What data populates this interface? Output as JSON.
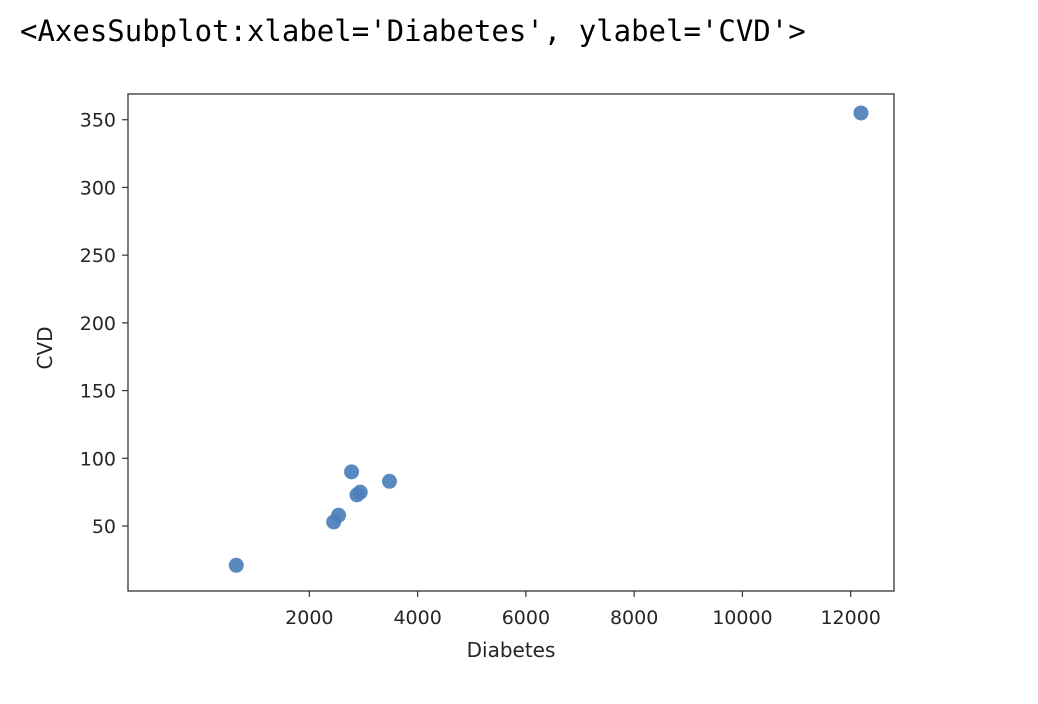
{
  "output_text": "<AxesSubplot:xlabel='Diabetes', ylabel='CVD'>",
  "chart_data": {
    "type": "scatter",
    "title": "",
    "xlabel": "Diabetes",
    "ylabel": "CVD",
    "xlim": [
      -1350,
      12800
    ],
    "ylim": [
      2,
      369
    ],
    "xticks": [
      2000,
      4000,
      6000,
      8000,
      10000,
      12000
    ],
    "xtick_labels": [
      "2000",
      "4000",
      "6000",
      "8000",
      "10000",
      "12000"
    ],
    "yticks": [
      50,
      100,
      150,
      200,
      250,
      300,
      350
    ],
    "ytick_labels": [
      "50",
      "100",
      "150",
      "200",
      "250",
      "300",
      "350"
    ],
    "grid": false,
    "marker_color": "#4c7fba",
    "points": [
      {
        "x": 650,
        "y": 21
      },
      {
        "x": 2450,
        "y": 53
      },
      {
        "x": 2540,
        "y": 58
      },
      {
        "x": 2780,
        "y": 90
      },
      {
        "x": 2880,
        "y": 73
      },
      {
        "x": 2940,
        "y": 75
      },
      {
        "x": 3480,
        "y": 83
      },
      {
        "x": 12190,
        "y": 355
      }
    ]
  }
}
